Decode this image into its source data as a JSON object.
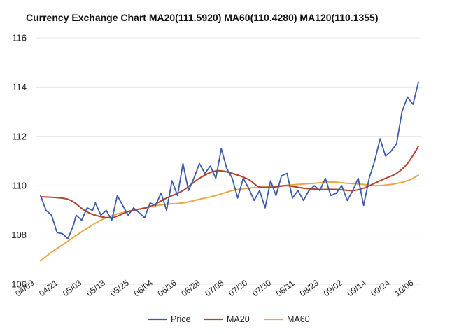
{
  "colors": {
    "price": "#3a5ba8",
    "ma20": "#b5432b",
    "ma60": "#e8a84a",
    "grid": "#e4e4e4",
    "text": "#222222"
  },
  "chart_data": {
    "type": "line",
    "title": "Currency Exchange Chart MA20(111.5920) MA60(110.4280) MA120(110.1355)",
    "xlabel": "",
    "ylabel": "",
    "ylim": [
      106,
      116
    ],
    "yticks": [
      106,
      108,
      110,
      112,
      114,
      116
    ],
    "ytick_labels": [
      "106",
      "108",
      "110",
      "112",
      "114",
      "116"
    ],
    "grid": true,
    "legend_position": "bottom",
    "n_points": 129,
    "x_tick_labels": [
      {
        "label": "04/09",
        "index": 0
      },
      {
        "label": "04/21",
        "index": 8
      },
      {
        "label": "05/03",
        "index": 16
      },
      {
        "label": "05/13",
        "index": 24
      },
      {
        "label": "05/25",
        "index": 32
      },
      {
        "label": "06/04",
        "index": 40
      },
      {
        "label": "06/16",
        "index": 48
      },
      {
        "label": "06/28",
        "index": 56
      },
      {
        "label": "07/08",
        "index": 64
      },
      {
        "label": "07/20",
        "index": 72
      },
      {
        "label": "07/30",
        "index": 80
      },
      {
        "label": "08/11",
        "index": 88
      },
      {
        "label": "08/23",
        "index": 96
      },
      {
        "label": "09/02",
        "index": 104
      },
      {
        "label": "09/14",
        "index": 112
      },
      {
        "label": "09/24",
        "index": 120
      },
      {
        "label": "10/06",
        "index": 128
      }
    ],
    "series": [
      {
        "name": "Price",
        "color": "#3a5ba8",
        "key_points": [
          [
            0,
            109.6
          ],
          [
            2,
            109.0
          ],
          [
            4,
            108.8
          ],
          [
            6,
            108.1
          ],
          [
            8,
            108.05
          ],
          [
            10,
            107.85
          ],
          [
            12,
            108.4
          ],
          [
            13,
            108.8
          ],
          [
            15,
            108.6
          ],
          [
            17,
            109.1
          ],
          [
            19,
            109.0
          ],
          [
            20,
            109.3
          ],
          [
            22,
            108.8
          ],
          [
            24,
            109.0
          ],
          [
            26,
            108.6
          ],
          [
            28,
            109.6
          ],
          [
            30,
            109.2
          ],
          [
            32,
            108.8
          ],
          [
            34,
            109.1
          ],
          [
            36,
            108.9
          ],
          [
            38,
            108.7
          ],
          [
            40,
            109.3
          ],
          [
            42,
            109.2
          ],
          [
            44,
            109.7
          ],
          [
            46,
            109.0
          ],
          [
            48,
            110.2
          ],
          [
            50,
            109.6
          ],
          [
            52,
            110.9
          ],
          [
            54,
            109.8
          ],
          [
            56,
            110.3
          ],
          [
            58,
            110.9
          ],
          [
            60,
            110.5
          ],
          [
            62,
            110.8
          ],
          [
            64,
            110.3
          ],
          [
            66,
            111.5
          ],
          [
            68,
            110.7
          ],
          [
            70,
            110.3
          ],
          [
            72,
            109.5
          ],
          [
            74,
            110.3
          ],
          [
            76,
            109.9
          ],
          [
            78,
            109.4
          ],
          [
            80,
            109.8
          ],
          [
            82,
            109.1
          ],
          [
            84,
            110.2
          ],
          [
            86,
            109.6
          ],
          [
            88,
            110.4
          ],
          [
            90,
            110.5
          ],
          [
            92,
            109.5
          ],
          [
            94,
            109.8
          ],
          [
            96,
            109.4
          ],
          [
            98,
            109.8
          ],
          [
            100,
            110.0
          ],
          [
            102,
            109.8
          ],
          [
            104,
            110.3
          ],
          [
            106,
            109.6
          ],
          [
            108,
            109.7
          ],
          [
            110,
            110.0
          ],
          [
            112,
            109.4
          ],
          [
            114,
            109.8
          ],
          [
            116,
            110.3
          ],
          [
            118,
            109.2
          ],
          [
            120,
            110.3
          ],
          [
            122,
            111.0
          ],
          [
            124,
            111.9
          ],
          [
            126,
            111.2
          ],
          [
            128,
            111.4
          ],
          [
            130,
            111.7
          ],
          [
            132,
            113.0
          ],
          [
            134,
            113.6
          ],
          [
            136,
            113.3
          ],
          [
            138,
            114.2
          ]
        ]
      },
      {
        "name": "MA20",
        "color": "#b5432b",
        "key_points": [
          [
            0,
            109.55
          ],
          [
            10,
            109.45
          ],
          [
            16,
            109.0
          ],
          [
            20,
            108.8
          ],
          [
            26,
            108.7
          ],
          [
            32,
            108.95
          ],
          [
            36,
            109.05
          ],
          [
            40,
            109.15
          ],
          [
            46,
            109.5
          ],
          [
            52,
            109.8
          ],
          [
            58,
            110.3
          ],
          [
            64,
            110.6
          ],
          [
            70,
            110.5
          ],
          [
            76,
            110.25
          ],
          [
            80,
            109.95
          ],
          [
            86,
            109.95
          ],
          [
            90,
            110.0
          ],
          [
            96,
            109.9
          ],
          [
            102,
            109.85
          ],
          [
            108,
            109.85
          ],
          [
            114,
            109.8
          ],
          [
            118,
            109.9
          ],
          [
            122,
            110.1
          ],
          [
            126,
            110.3
          ],
          [
            130,
            110.5
          ],
          [
            134,
            110.9
          ],
          [
            138,
            111.6
          ]
        ]
      },
      {
        "name": "MA60",
        "color": "#e8a84a",
        "key_points": [
          [
            0,
            106.95
          ],
          [
            4,
            107.3
          ],
          [
            10,
            107.75
          ],
          [
            16,
            108.2
          ],
          [
            22,
            108.6
          ],
          [
            28,
            108.85
          ],
          [
            34,
            109.0
          ],
          [
            40,
            109.15
          ],
          [
            46,
            109.25
          ],
          [
            52,
            109.3
          ],
          [
            58,
            109.45
          ],
          [
            64,
            109.6
          ],
          [
            70,
            109.8
          ],
          [
            76,
            109.9
          ],
          [
            82,
            109.95
          ],
          [
            88,
            110.0
          ],
          [
            94,
            110.05
          ],
          [
            100,
            110.1
          ],
          [
            106,
            110.15
          ],
          [
            112,
            110.1
          ],
          [
            118,
            110.05
          ],
          [
            122,
            110.0
          ],
          [
            128,
            110.05
          ],
          [
            134,
            110.2
          ],
          [
            138,
            110.43
          ]
        ]
      }
    ]
  }
}
